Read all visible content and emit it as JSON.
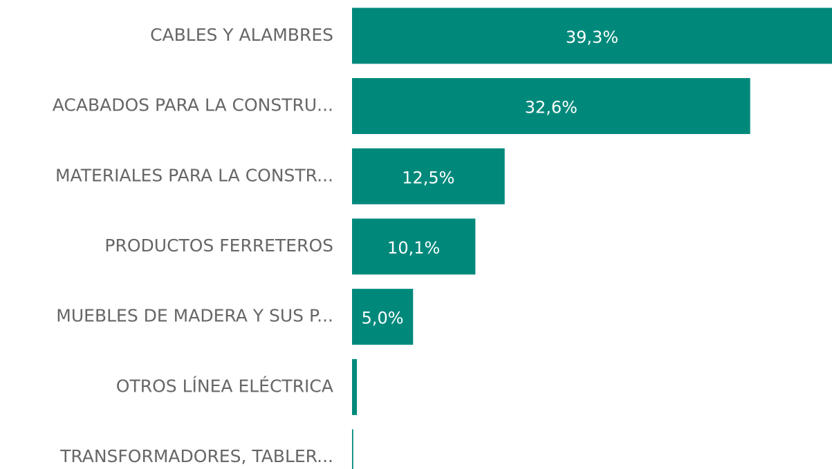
{
  "chart_data": {
    "type": "bar",
    "orientation": "horizontal",
    "categories": [
      "CABLES Y ALAMBRES",
      "ACABADOS PARA LA CONSTRU...",
      "MATERIALES PARA LA CONSTR...",
      "PRODUCTOS FERRETEROS",
      "MUEBLES DE MADERA Y SUS P...",
      "OTROS LÍNEA ELÉCTRICA",
      "TRANSFORMADORES, TABLER..."
    ],
    "values": [
      39.3,
      32.6,
      12.5,
      10.1,
      5.0,
      0.4,
      0.1
    ],
    "value_labels": [
      "39,3%",
      "32,6%",
      "12,5%",
      "10,1%",
      "5,0%",
      null,
      null
    ],
    "color": "#00897b",
    "xlim": [
      0,
      39.3
    ]
  }
}
